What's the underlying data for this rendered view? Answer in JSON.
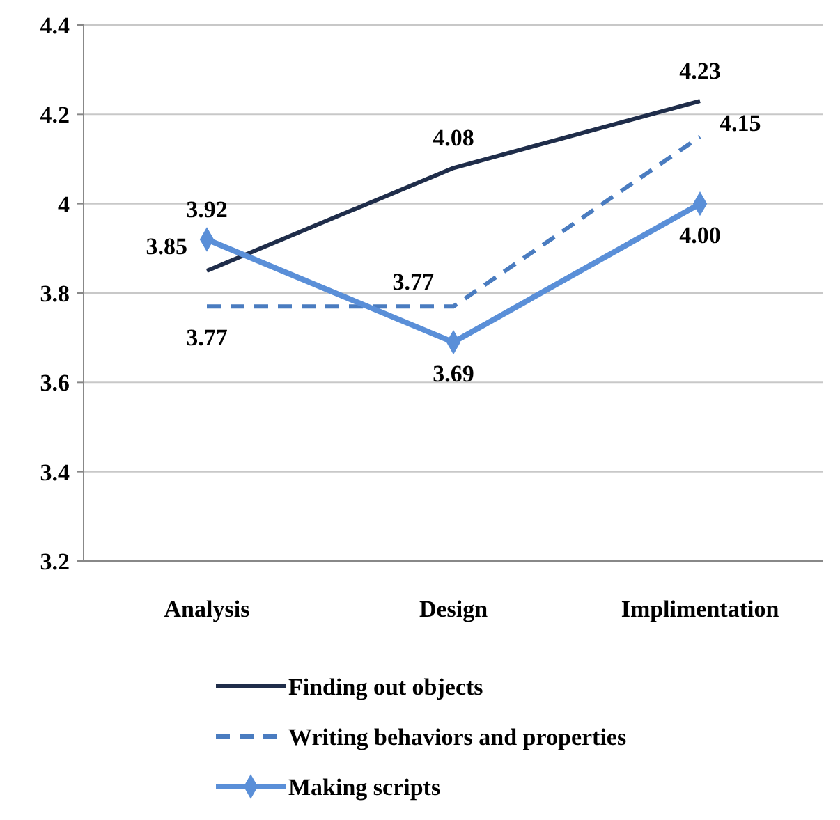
{
  "chart_data": {
    "type": "line",
    "categories": [
      "Analysis",
      "Design",
      "Implimentation"
    ],
    "ylim": [
      3.2,
      4.4
    ],
    "yticks": [
      3.2,
      3.4,
      3.6,
      3.8,
      4,
      4.2,
      4.4
    ],
    "grid": "y",
    "legend": "bottom",
    "series": [
      {
        "name": "Finding out objects",
        "color": "#1f2d4a",
        "values": [
          3.85,
          4.08,
          4.23
        ],
        "value_labels": [
          "3.85",
          "4.08",
          "4.23"
        ],
        "line_style": "solid",
        "marker": "none"
      },
      {
        "name": "Writing behaviors and properties",
        "color": "#4a7cc0",
        "values": [
          3.77,
          3.77,
          4.15
        ],
        "value_labels": [
          "3.77",
          "3.77",
          "4.15"
        ],
        "line_style": "dashed",
        "marker": "none"
      },
      {
        "name": "Making scripts",
        "color": "#5a8fd8",
        "values": [
          3.92,
          3.69,
          4.0
        ],
        "value_labels": [
          "3.92",
          "3.69",
          "4.00"
        ],
        "line_style": "solid",
        "marker": "diamond"
      }
    ]
  }
}
